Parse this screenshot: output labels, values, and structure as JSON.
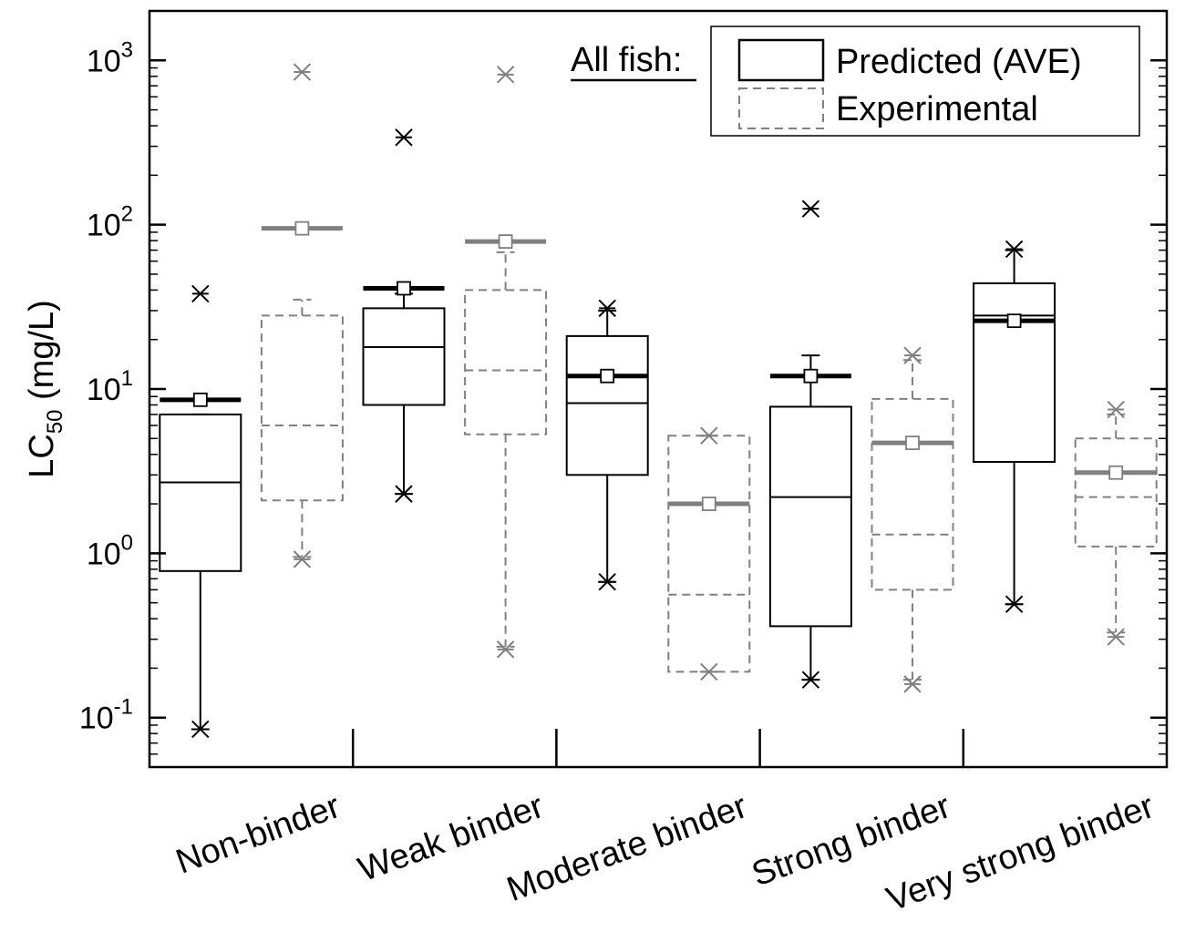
{
  "chart_data": {
    "type": "box",
    "title": "",
    "ylabel_main": "LC",
    "ylabel_sub": "50",
    "ylabel_unit": " (mg/L)",
    "yscale": "log",
    "ylim": [
      0.05,
      2000
    ],
    "ytick_values": [
      0.1,
      1,
      10,
      100,
      1000
    ],
    "ytick_exponents": [
      "-1",
      "0",
      "1",
      "2",
      "3"
    ],
    "categories": [
      "Non-binder",
      "Weak binder",
      "Moderate binder",
      "Strong binder",
      "Very strong binder"
    ],
    "legend": {
      "heading": "All fish:",
      "position": "top-right",
      "entries": [
        "Predicted (AVE)",
        "Experimental"
      ]
    },
    "series": [
      {
        "name": "Predicted (AVE)",
        "color": "#000000",
        "line_style": "solid",
        "boxes": [
          {
            "q1": 0.78,
            "median": 2.7,
            "q3": 7.0,
            "whisker_low": 0.085,
            "whisker_high": 7.0,
            "mean": 8.6,
            "outliers_low": [
              0.085
            ],
            "outliers_high": [
              38
            ]
          },
          {
            "q1": 8.0,
            "median": 18,
            "q3": 31,
            "whisker_low": 2.3,
            "whisker_high": 38,
            "mean": 41,
            "outliers_low": [
              2.3
            ],
            "outliers_high": [
              340
            ]
          },
          {
            "q1": 3.0,
            "median": 8.2,
            "q3": 21,
            "whisker_low": 0.67,
            "whisker_high": 30,
            "mean": 12,
            "outliers_low": [
              0.67
            ],
            "outliers_high": [
              31
            ]
          },
          {
            "q1": 0.36,
            "median": 2.2,
            "q3": 7.8,
            "whisker_low": 0.17,
            "whisker_high": 16,
            "mean": 12,
            "outliers_low": [
              0.17
            ],
            "outliers_high": [
              125
            ]
          },
          {
            "q1": 3.6,
            "median": 28,
            "q3": 44,
            "whisker_low": 0.49,
            "whisker_high": 70,
            "mean": 26,
            "outliers_low": [
              0.49
            ],
            "outliers_high": [
              71
            ]
          }
        ]
      },
      {
        "name": "Experimental",
        "color": "#808080",
        "line_style": "dashed",
        "boxes": [
          {
            "q1": 2.1,
            "median": 6.0,
            "q3": 28,
            "whisker_low": 0.95,
            "whisker_high": 35,
            "mean": 95,
            "outliers_low": [
              0.92
            ],
            "outliers_high": [
              850
            ]
          },
          {
            "q1": 5.3,
            "median": 13,
            "q3": 40,
            "whisker_low": 0.27,
            "whisker_high": 68,
            "mean": 79,
            "outliers_low": [
              0.26
            ],
            "outliers_high": [
              820
            ]
          },
          {
            "q1": 0.19,
            "median": 0.56,
            "q3": 5.2,
            "whisker_low": 0.19,
            "whisker_high": 5.2,
            "mean": 2.0,
            "outliers_low": [
              0.19
            ],
            "outliers_high": [
              5.2
            ]
          },
          {
            "q1": 0.6,
            "median": 1.3,
            "q3": 8.7,
            "whisker_low": 0.17,
            "whisker_high": 15,
            "mean": 4.7,
            "outliers_low": [
              0.16
            ],
            "outliers_high": [
              16
            ]
          },
          {
            "q1": 1.1,
            "median": 2.2,
            "q3": 5.0,
            "whisker_low": 0.33,
            "whisker_high": 7.0,
            "mean": 3.1,
            "outliers_low": [
              0.31
            ],
            "outliers_high": [
              7.5
            ]
          }
        ]
      }
    ]
  }
}
